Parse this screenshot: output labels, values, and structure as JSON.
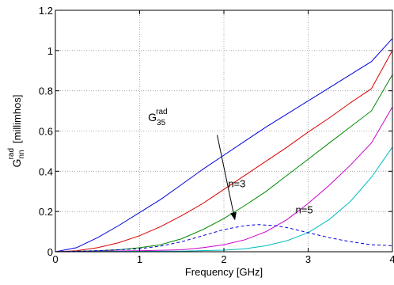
{
  "chart_data": {
    "type": "line",
    "xlabel": "Frequency [GHz]",
    "ylabel": {
      "base": "G",
      "sub": "nn",
      "sup": "rad",
      "units": "[millimhos]"
    },
    "xlim": [
      0,
      4
    ],
    "ylim": [
      0,
      1.2
    ],
    "x_ticks": [
      0,
      1,
      2,
      3,
      4
    ],
    "y_ticks": [
      0,
      0.2,
      0.4,
      0.6,
      0.8,
      1,
      1.2
    ],
    "x_tick_labels": [
      "0",
      "1",
      "2",
      "3",
      "4"
    ],
    "y_tick_labels": [
      "0",
      "0.2",
      "0.4",
      "0.6",
      "0.8",
      "1",
      "1.2"
    ],
    "grid": true,
    "series": [
      {
        "color": "#0000dd",
        "style": "solid",
        "x": [
          0,
          0.25,
          0.5,
          0.75,
          1.0,
          1.25,
          1.5,
          1.75,
          2.0,
          2.25,
          2.5,
          2.75,
          3.0,
          3.25,
          3.5,
          3.75,
          4.0
        ],
        "y": [
          0,
          0.02,
          0.07,
          0.13,
          0.195,
          0.26,
          0.335,
          0.41,
          0.48,
          0.55,
          0.62,
          0.685,
          0.75,
          0.815,
          0.88,
          0.945,
          1.06
        ]
      },
      {
        "color": "#dd0000",
        "style": "solid",
        "x": [
          0,
          0.25,
          0.5,
          0.75,
          1.0,
          1.25,
          1.5,
          1.75,
          2.0,
          2.25,
          2.5,
          2.75,
          3.0,
          3.25,
          3.5,
          3.75,
          4.0
        ],
        "y": [
          0,
          0.005,
          0.02,
          0.045,
          0.08,
          0.125,
          0.18,
          0.24,
          0.31,
          0.38,
          0.45,
          0.52,
          0.595,
          0.665,
          0.74,
          0.81,
          1.0
        ]
      },
      {
        "color": "#008800",
        "style": "solid",
        "x": [
          0,
          0.5,
          0.75,
          1.0,
          1.25,
          1.5,
          1.75,
          2.0,
          2.25,
          2.5,
          2.75,
          3.0,
          3.25,
          3.5,
          3.75,
          4.0
        ],
        "y": [
          0,
          0.005,
          0.01,
          0.02,
          0.035,
          0.065,
          0.11,
          0.165,
          0.23,
          0.3,
          0.38,
          0.46,
          0.54,
          0.62,
          0.7,
          0.88
        ]
      },
      {
        "color": "#cc00cc",
        "style": "solid",
        "x": [
          0,
          1.0,
          1.5,
          1.75,
          2.0,
          2.25,
          2.5,
          2.75,
          3.0,
          3.25,
          3.5,
          3.75,
          4.0
        ],
        "y": [
          0,
          0.005,
          0.01,
          0.02,
          0.035,
          0.06,
          0.1,
          0.16,
          0.24,
          0.33,
          0.43,
          0.54,
          0.72
        ]
      },
      {
        "color": "#00bbbb",
        "style": "solid",
        "x": [
          0,
          1.5,
          2.0,
          2.25,
          2.5,
          2.75,
          3.0,
          3.25,
          3.5,
          3.75,
          4.0
        ],
        "y": [
          0,
          0.003,
          0.008,
          0.015,
          0.03,
          0.055,
          0.095,
          0.16,
          0.25,
          0.37,
          0.52
        ]
      },
      {
        "color": "#0000dd",
        "style": "dashed",
        "x": [
          0,
          0.5,
          1.0,
          1.25,
          1.5,
          1.75,
          2.0,
          2.25,
          2.4,
          2.6,
          2.75,
          3.0,
          3.25,
          3.5,
          3.75,
          4.0
        ],
        "y": [
          0,
          0.005,
          0.015,
          0.028,
          0.05,
          0.08,
          0.11,
          0.13,
          0.135,
          0.13,
          0.12,
          0.095,
          0.07,
          0.05,
          0.035,
          0.03
        ]
      }
    ],
    "annotations": [
      {
        "text": "n=3",
        "x": 2.05,
        "y": 0.32
      },
      {
        "text": "n=5",
        "x": 2.85,
        "y": 0.19
      }
    ],
    "arrow_annotation": {
      "label_base": "G",
      "label_sub": "35",
      "label_sup": "rad",
      "label_x": 1.1,
      "label_y": 0.65,
      "from": [
        1.92,
        0.58
      ],
      "to": [
        2.13,
        0.16
      ]
    }
  }
}
